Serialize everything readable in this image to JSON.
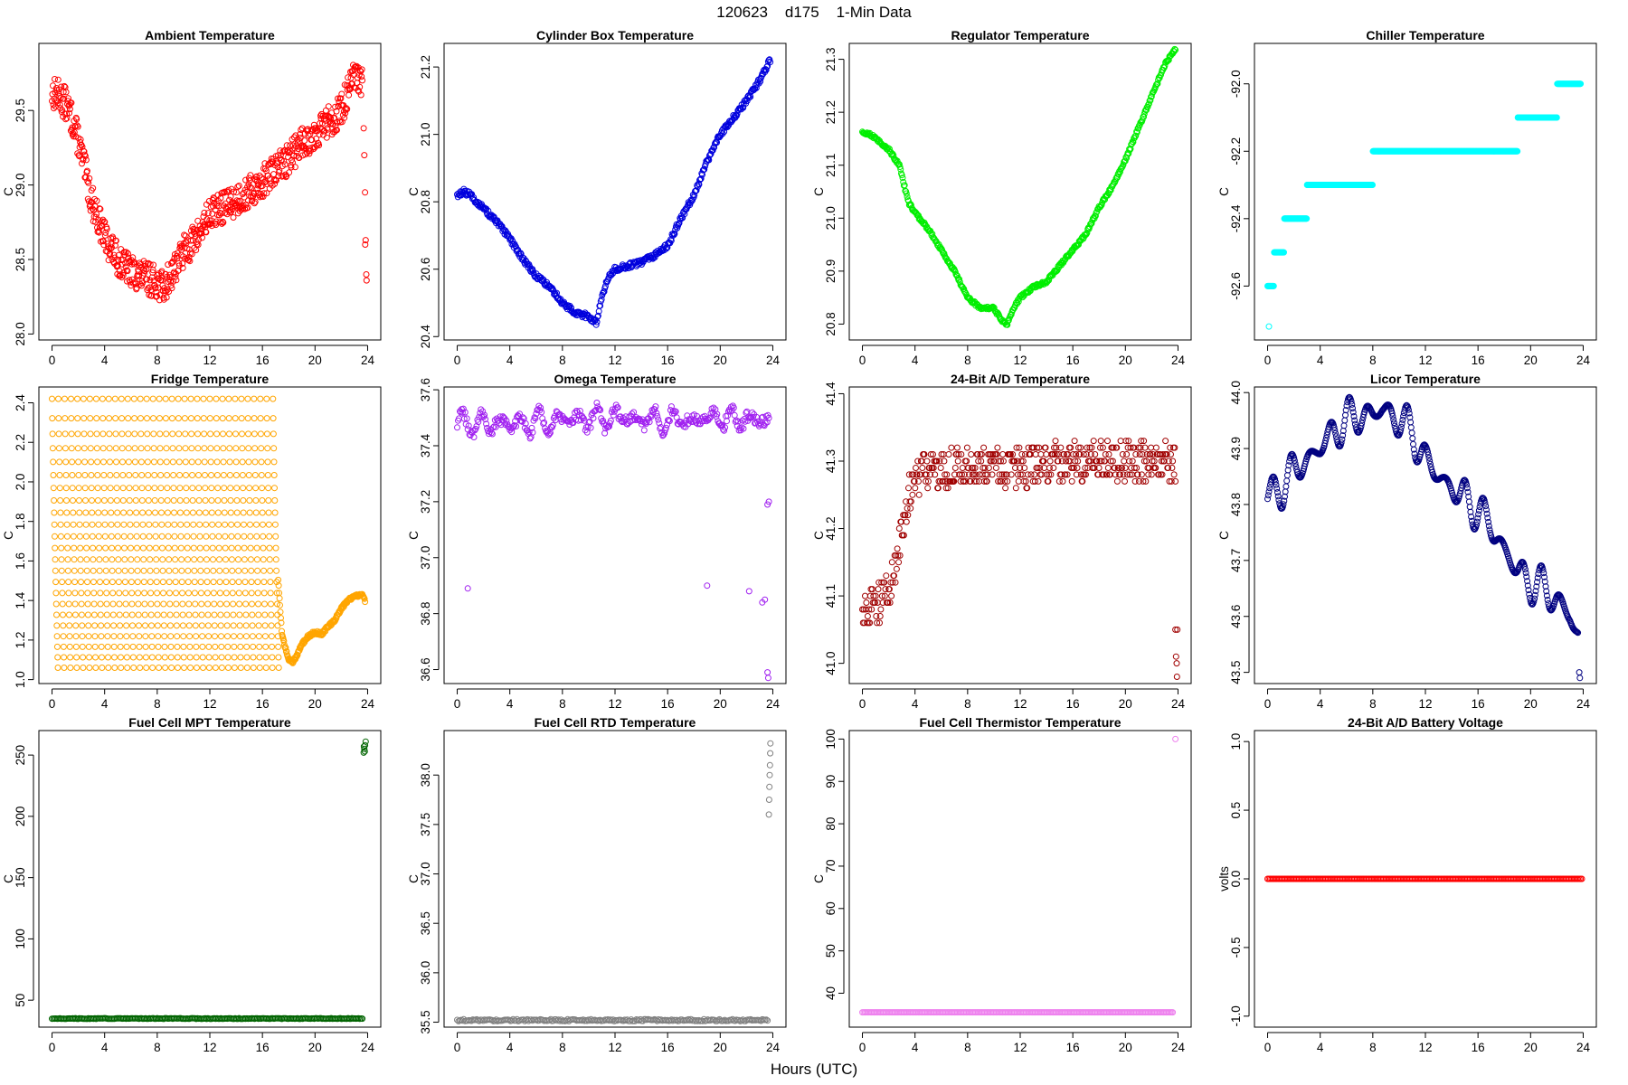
{
  "figure": {
    "title": "120623    d175    1-Min Data",
    "xlabel": "Hours (UTC)"
  },
  "chart_data": [
    {
      "type": "scatter",
      "title": "Ambient Temperature",
      "ylabel": "C",
      "xlim": [
        -1,
        25
      ],
      "ylim": [
        27.96,
        29.95
      ],
      "xticks": [
        0,
        4,
        8,
        12,
        16,
        20,
        24
      ],
      "yticks": [
        28.0,
        28.5,
        29.0,
        29.5
      ],
      "ytick_labels": [
        "28.0",
        "28.5",
        "29.0",
        "29.5"
      ],
      "color": "#ff0000",
      "density": 2,
      "noise": 0.11,
      "x": [
        0,
        0.5,
        1,
        1.5,
        2,
        2.5,
        3,
        4,
        5,
        6,
        7,
        8,
        8.5,
        9,
        10,
        11,
        12,
        13,
        14,
        15,
        16,
        17,
        18,
        19,
        20,
        21,
        22,
        22.5,
        23,
        23.6
      ],
      "y": [
        29.62,
        29.6,
        29.55,
        29.45,
        29.3,
        29.1,
        28.9,
        28.65,
        28.5,
        28.42,
        28.38,
        28.35,
        28.3,
        28.4,
        28.55,
        28.65,
        28.8,
        28.85,
        28.9,
        28.95,
        29.02,
        29.1,
        29.18,
        29.28,
        29.35,
        29.42,
        29.5,
        29.62,
        29.72,
        29.68
      ],
      "extra_points": [
        [
          23.7,
          29.38
        ],
        [
          23.75,
          29.2
        ],
        [
          23.8,
          28.95
        ],
        [
          23.82,
          28.6
        ],
        [
          23.9,
          28.4
        ],
        [
          23.92,
          28.36
        ],
        [
          23.85,
          28.63
        ]
      ]
    },
    {
      "type": "scatter",
      "title": "Cylinder Box Temperature",
      "ylabel": "C",
      "xlim": [
        -1,
        25
      ],
      "ylim": [
        20.39,
        21.27
      ],
      "xticks": [
        0,
        4,
        8,
        12,
        16,
        20,
        24
      ],
      "yticks": [
        20.4,
        20.6,
        20.8,
        21.0,
        21.2
      ],
      "ytick_labels": [
        "20.4",
        "20.6",
        "20.8",
        "21.0",
        "21.2"
      ],
      "color": "#0000dd",
      "density": 3,
      "noise": 0.008,
      "x": [
        0,
        0.5,
        1,
        2,
        3,
        4,
        5,
        6,
        7,
        8,
        9,
        10,
        10.6,
        11,
        11.5,
        12,
        13,
        14,
        15,
        16,
        17,
        18,
        19,
        20,
        21,
        22,
        23,
        23.8
      ],
      "y": [
        20.82,
        20.83,
        20.82,
        20.78,
        20.74,
        20.69,
        20.63,
        20.58,
        20.55,
        20.5,
        20.47,
        20.46,
        20.44,
        20.52,
        20.58,
        20.6,
        20.61,
        20.62,
        20.64,
        20.67,
        20.75,
        20.82,
        20.92,
        21.0,
        21.05,
        21.1,
        21.16,
        21.22
      ]
    },
    {
      "type": "scatter",
      "title": "Regulator Temperature",
      "ylabel": "C",
      "xlim": [
        -1,
        25
      ],
      "ylim": [
        20.77,
        21.33
      ],
      "xticks": [
        0,
        4,
        8,
        12,
        16,
        20,
        24
      ],
      "yticks": [
        20.8,
        20.9,
        21.0,
        21.1,
        21.2,
        21.3
      ],
      "ytick_labels": [
        "20.8",
        "20.9",
        "21.0",
        "21.1",
        "21.2",
        "21.3"
      ],
      "color": "#00ee00",
      "density": 3,
      "noise": 0.003,
      "x": [
        0,
        0.5,
        1,
        2,
        2.8,
        3.5,
        4,
        5,
        6,
        7,
        8,
        9,
        10,
        10.5,
        11,
        11.5,
        12,
        13,
        14,
        15,
        16,
        17,
        18,
        19,
        20,
        21,
        22,
        23,
        23.8
      ],
      "y": [
        21.16,
        21.16,
        21.15,
        21.13,
        21.1,
        21.03,
        21.01,
        20.98,
        20.94,
        20.9,
        20.85,
        20.83,
        20.83,
        20.81,
        20.8,
        20.83,
        20.85,
        20.87,
        20.88,
        20.91,
        20.94,
        20.97,
        21.02,
        21.06,
        21.11,
        21.17,
        21.23,
        21.29,
        21.32
      ]
    },
    {
      "type": "scatter",
      "title": "Chiller Temperature",
      "ylabel": "C",
      "xlim": [
        -1,
        25
      ],
      "ylim": [
        -92.76,
        -91.88
      ],
      "xticks": [
        0,
        4,
        8,
        12,
        16,
        20,
        24
      ],
      "yticks": [
        -92.6,
        -92.4,
        -92.2,
        -92.0
      ],
      "ytick_labels": [
        "-92.6",
        "-92.4",
        "-92.2",
        "-92.0"
      ],
      "color": "#00ffff",
      "density": 2,
      "noise": 0,
      "quantum": 0.1,
      "x": [
        0,
        0.5,
        1,
        1.5,
        2,
        3,
        4,
        6,
        8,
        10,
        12,
        14,
        16,
        18,
        20,
        22,
        23,
        23.8
      ],
      "y": [
        -92.62,
        -92.55,
        -92.48,
        -92.42,
        -92.38,
        -92.35,
        -92.3,
        -92.28,
        -92.25,
        -92.23,
        -92.25,
        -92.22,
        -92.18,
        -92.18,
        -92.12,
        -92.05,
        -92.0,
        -92.02
      ],
      "extra_points": [
        [
          0.1,
          -92.72
        ]
      ]
    },
    {
      "type": "scatter",
      "title": "Fridge Temperature",
      "ylabel": "C",
      "xlim": [
        -1,
        25
      ],
      "ylim": [
        0.98,
        2.48
      ],
      "xticks": [
        0,
        4,
        8,
        12,
        16,
        20,
        24
      ],
      "yticks": [
        1.0,
        1.2,
        1.4,
        1.6,
        1.8,
        2.0,
        2.2,
        2.4
      ],
      "ytick_labels": [
        "1.0",
        "1.2",
        "1.4",
        "1.6",
        "1.8",
        "2.0",
        "2.2",
        "2.4"
      ],
      "color": "#ffa500",
      "density": 2,
      "noise": 0.008,
      "x": [
        17.2,
        17.5,
        18,
        18.3,
        18.6,
        19,
        19.5,
        20,
        20.5,
        21,
        21.5,
        22,
        22.5,
        23,
        23.6,
        23.8
      ],
      "y": [
        1.5,
        1.22,
        1.1,
        1.09,
        1.12,
        1.18,
        1.22,
        1.24,
        1.23,
        1.27,
        1.3,
        1.36,
        1.4,
        1.42,
        1.43,
        1.4
      ],
      "cycles": {
        "start": 0,
        "end": 17.2,
        "period": 0.48,
        "low": 1.06,
        "high": 2.42
      }
    },
    {
      "type": "scatter",
      "title": "Omega Temperature",
      "ylabel": "C",
      "xlim": [
        -1,
        25
      ],
      "ylim": [
        36.55,
        37.61
      ],
      "xticks": [
        0,
        4,
        8,
        12,
        16,
        20,
        24
      ],
      "yticks": [
        36.6,
        36.8,
        37.0,
        37.2,
        37.4,
        37.6
      ],
      "ytick_labels": [
        "36.6",
        "36.8",
        "37.0",
        "37.2",
        "37.4",
        "37.6"
      ],
      "color": "#a020f0",
      "density": 4,
      "noise": 0.02,
      "wave": 0.045,
      "x": [
        0,
        4,
        8,
        12,
        16,
        20,
        23.7
      ],
      "y": [
        37.48,
        37.48,
        37.49,
        37.5,
        37.49,
        37.5,
        37.49
      ],
      "extra_points": [
        [
          0.8,
          36.89
        ],
        [
          19,
          36.9
        ],
        [
          22.2,
          36.88
        ],
        [
          23.2,
          36.84
        ],
        [
          23.4,
          36.85
        ],
        [
          23.6,
          37.19
        ],
        [
          23.7,
          37.2
        ],
        [
          23.6,
          36.59
        ],
        [
          23.65,
          36.57
        ]
      ]
    },
    {
      "type": "scatter",
      "title": "24-Bit A/D Temperature",
      "ylabel": "C",
      "xlim": [
        -1,
        25
      ],
      "ylim": [
        40.97,
        41.41
      ],
      "xticks": [
        0,
        4,
        8,
        12,
        16,
        20,
        24
      ],
      "yticks": [
        41.0,
        41.1,
        41.2,
        41.3,
        41.4
      ],
      "ytick_labels": [
        "41.0",
        "41.1",
        "41.2",
        "41.3",
        "41.4"
      ],
      "color": "#a00000",
      "density": 3,
      "noise": 0.03,
      "quantum": 0.01,
      "x": [
        0,
        1,
        2,
        2.5,
        3,
        3.5,
        4,
        6,
        8,
        10,
        12,
        16,
        20,
        23.8
      ],
      "y": [
        41.08,
        41.09,
        41.1,
        41.15,
        41.2,
        41.25,
        41.28,
        41.29,
        41.29,
        41.29,
        41.29,
        41.3,
        41.3,
        41.3
      ],
      "extra_points": [
        [
          23.8,
          41.05
        ],
        [
          23.85,
          41.01
        ],
        [
          23.9,
          41.0
        ],
        [
          23.92,
          40.98
        ],
        [
          23.95,
          41.05
        ]
      ]
    },
    {
      "type": "scatter",
      "title": "Licor Temperature",
      "ylabel": "C",
      "xlim": [
        -1,
        25
      ],
      "ylim": [
        43.48,
        44.01
      ],
      "xticks": [
        0,
        4,
        8,
        12,
        16,
        20,
        24
      ],
      "yticks": [
        43.5,
        43.6,
        43.7,
        43.8,
        43.9,
        44.0
      ],
      "ytick_labels": [
        "43.5",
        "43.6",
        "43.7",
        "43.8",
        "43.9",
        "44.0"
      ],
      "color": "#000080",
      "density": 3,
      "noise": 0,
      "wave": 0.04,
      "x": [
        0,
        1,
        2,
        3,
        4,
        5,
        6,
        7,
        8,
        8.7,
        9.5,
        10,
        11,
        12,
        13,
        14,
        15,
        16,
        17,
        18,
        19,
        20,
        21,
        22,
        23,
        23.6
      ],
      "y": [
        43.81,
        43.83,
        43.86,
        43.88,
        43.9,
        43.93,
        43.95,
        43.96,
        43.96,
        43.97,
        43.96,
        43.95,
        43.93,
        43.88,
        43.85,
        43.83,
        43.81,
        43.79,
        43.76,
        43.72,
        43.68,
        43.66,
        43.65,
        43.63,
        43.6,
        43.56
      ],
      "extra_points": [
        [
          23.7,
          43.5
        ],
        [
          23.75,
          43.49
        ]
      ]
    },
    {
      "type": "scatter",
      "title": "Fuel Cell MPT Temperature",
      "ylabel": "C",
      "xlim": [
        -1,
        25
      ],
      "ylim": [
        28,
        270
      ],
      "xticks": [
        0,
        4,
        8,
        12,
        16,
        20,
        24
      ],
      "yticks": [
        50,
        100,
        150,
        200,
        250
      ],
      "ytick_labels": [
        "50",
        "100",
        "150",
        "200",
        "250"
      ],
      "color": "#006400",
      "density": 6,
      "noise": 0.3,
      "x": [
        0,
        23.6
      ],
      "y": [
        35,
        35
      ],
      "extra_points": [
        [
          23.7,
          252
        ],
        [
          23.75,
          255
        ],
        [
          23.8,
          258
        ],
        [
          23.85,
          261
        ],
        [
          23.78,
          253
        ],
        [
          23.72,
          257
        ]
      ]
    },
    {
      "type": "scatter",
      "title": "Fuel Cell RTD Temperature",
      "ylabel": "C",
      "xlim": [
        -1,
        25
      ],
      "ylim": [
        35.45,
        38.45
      ],
      "xticks": [
        0,
        4,
        8,
        12,
        16,
        20,
        24
      ],
      "yticks": [
        35.5,
        36.0,
        36.5,
        37.0,
        37.5,
        38.0
      ],
      "ytick_labels": [
        "35.5",
        "36.0",
        "36.5",
        "37.0",
        "37.5",
        "38.0"
      ],
      "color": "#808080",
      "density": 6,
      "noise": 0.01,
      "x": [
        0,
        23.6
      ],
      "y": [
        35.52,
        35.52
      ],
      "extra_points": [
        [
          23.7,
          37.6
        ],
        [
          23.72,
          37.75
        ],
        [
          23.74,
          37.88
        ],
        [
          23.76,
          38.0
        ],
        [
          23.78,
          38.1
        ],
        [
          23.8,
          38.22
        ],
        [
          23.82,
          38.32
        ]
      ]
    },
    {
      "type": "scatter",
      "title": "Fuel Cell Thermistor Temperature",
      "ylabel": "C",
      "xlim": [
        -1,
        25
      ],
      "ylim": [
        32,
        102
      ],
      "xticks": [
        0,
        4,
        8,
        12,
        16,
        20,
        24
      ],
      "yticks": [
        40,
        50,
        60,
        70,
        80,
        90,
        100
      ],
      "ytick_labels": [
        "40",
        "50",
        "60",
        "70",
        "80",
        "90",
        "100"
      ],
      "color": "#ee82ee",
      "density": 6,
      "noise": 0,
      "x": [
        0,
        23.6
      ],
      "y": [
        35.5,
        35.5
      ],
      "extra_points": [
        [
          23.8,
          100
        ]
      ]
    },
    {
      "type": "scatter",
      "title": "24-Bit A/D Battery Voltage",
      "ylabel": "volts",
      "xlim": [
        -1,
        25
      ],
      "ylim": [
        -1.08,
        1.08
      ],
      "xticks": [
        0,
        4,
        8,
        12,
        16,
        20,
        24
      ],
      "yticks": [
        -1.0,
        -0.5,
        0.0,
        0.5,
        1.0
      ],
      "ytick_labels": [
        "-1.0",
        "-0.5",
        "0.0",
        "0.5",
        "1.0"
      ],
      "color": "#ff0000",
      "density": 6,
      "noise": 0,
      "x": [
        0,
        23.9
      ],
      "y": [
        0,
        0
      ]
    }
  ]
}
